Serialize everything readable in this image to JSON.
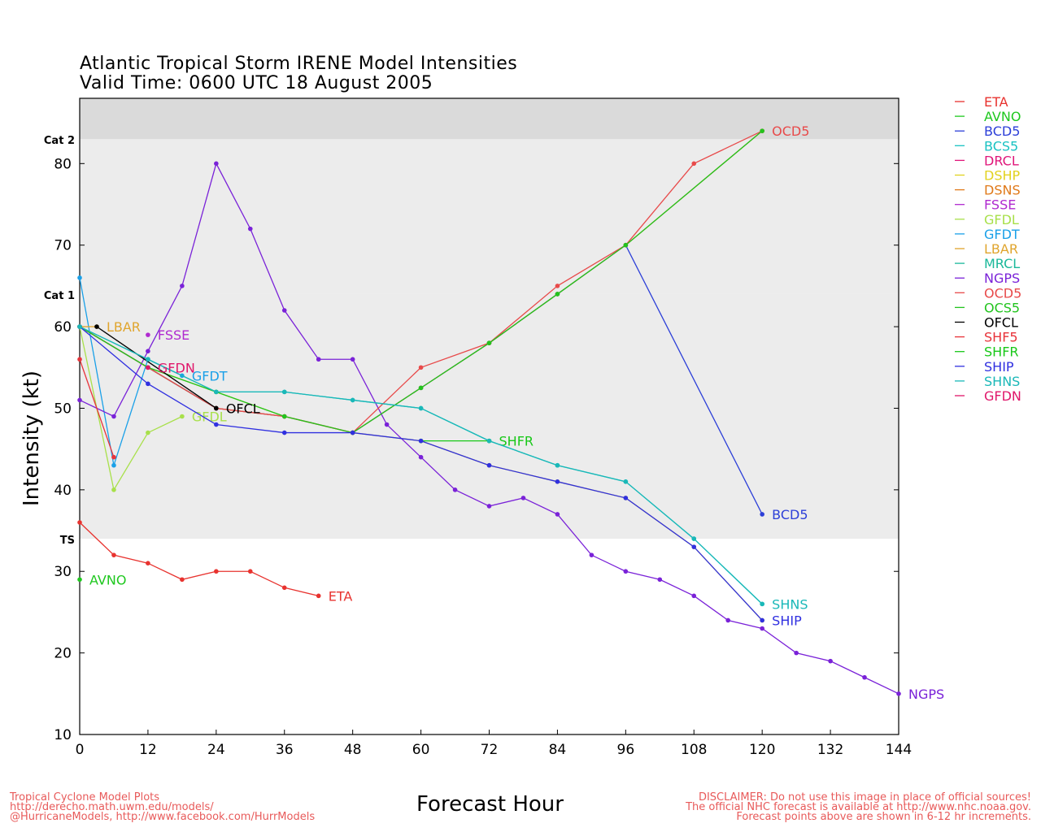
{
  "header": {
    "title_line1": "Atlantic Tropical Storm IRENE Model Intensities",
    "title_line2": "Valid Time: 0600 UTC 18 August 2005"
  },
  "footer": {
    "left": [
      "Tropical Cyclone Model Plots",
      "http://derecho.math.uwm.edu/models/",
      "@HurricaneModels, http://www.facebook.com/HurrModels"
    ],
    "right": [
      "DISCLAIMER: Do not use this image in place of official sources!",
      "The official NHC forecast is available at http://www.nhc.noaa.gov.",
      "Forecast points above are shown in 6-12 hr increments."
    ]
  },
  "chart_data": {
    "type": "line",
    "xlabel": "Forecast Hour",
    "ylabel": "Intensity (kt)",
    "xlim": [
      0,
      144
    ],
    "ylim": [
      10,
      88
    ],
    "xticks": [
      0,
      12,
      24,
      36,
      48,
      60,
      72,
      84,
      96,
      108,
      120,
      132,
      144
    ],
    "yticks": [
      10,
      20,
      30,
      40,
      50,
      60,
      70,
      80
    ],
    "category_bands": [
      {
        "label": "TS",
        "from": 34,
        "to": 64,
        "color": "#ececec"
      },
      {
        "label": "Cat 1",
        "from": 64,
        "to": 83,
        "color": "#ececec"
      },
      {
        "label": "Cat 2",
        "from": 83,
        "to": 88,
        "color": "#dadada"
      }
    ],
    "band_labels": [
      {
        "label": "TS",
        "y": 34
      },
      {
        "label": "Cat 1",
        "y": 64
      },
      {
        "label": "Cat 2",
        "y": 83
      }
    ],
    "legend_position": "right",
    "series": [
      {
        "name": "ETA",
        "color": "#e8332f",
        "x": [
          0,
          6,
          12,
          18,
          24,
          30,
          36,
          42
        ],
        "y": [
          36,
          32,
          31,
          29,
          30,
          30,
          28,
          27
        ],
        "end_label": "ETA"
      },
      {
        "name": "AVNO",
        "color": "#1ec81e",
        "x": [
          0
        ],
        "y": [
          29
        ],
        "end_label": "AVNO"
      },
      {
        "name": "BCD5",
        "color": "#2c3fd8",
        "x": [
          0,
          12,
          24,
          36,
          48,
          60,
          72,
          84,
          96,
          120
        ],
        "y": [
          60,
          55,
          50,
          49,
          47,
          52.5,
          58,
          64,
          70,
          37
        ],
        "end_label": "BCD5"
      },
      {
        "name": "BCS5",
        "color": "#19c2c2",
        "x": [
          0,
          12,
          24,
          36,
          48,
          60,
          72,
          84,
          96,
          108,
          120
        ],
        "y": [
          60,
          56,
          52,
          52,
          51,
          50,
          46,
          43,
          41,
          34,
          26
        ],
        "end_label": ""
      },
      {
        "name": "DRCL",
        "color": "#e0167a",
        "x": [
          0,
          12,
          24
        ],
        "y": [
          60,
          55,
          50
        ],
        "end_label": ""
      },
      {
        "name": "DSHP",
        "color": "#e2d21e",
        "x": [
          0,
          12,
          24,
          36,
          48,
          60,
          72,
          84,
          96,
          108,
          120
        ],
        "y": [
          60,
          55,
          52,
          49,
          47,
          46,
          43,
          41,
          39,
          33,
          24
        ],
        "end_label": ""
      },
      {
        "name": "DSNS",
        "color": "#e07a1a",
        "x": [
          0,
          12,
          24,
          36,
          48,
          60,
          72,
          84,
          96,
          120
        ],
        "y": [
          60,
          55,
          50,
          49,
          47,
          52.5,
          58,
          64,
          70,
          84
        ],
        "end_label": ""
      },
      {
        "name": "FSSE",
        "color": "#b02ad0",
        "x": [
          12
        ],
        "y": [
          59
        ],
        "end_label": "FSSE"
      },
      {
        "name": "GFDL",
        "color": "#a8e04a",
        "x": [
          0,
          6,
          12,
          18
        ],
        "y": [
          60,
          40,
          47,
          49
        ],
        "end_label": "GFDL"
      },
      {
        "name": "GFDT",
        "color": "#1aa0e8",
        "x": [
          0,
          6,
          12,
          18
        ],
        "y": [
          66,
          43,
          56,
          54
        ],
        "end_label": "GFDT"
      },
      {
        "name": "LBAR",
        "color": "#e0a52e",
        "x": [
          0,
          3
        ],
        "y": [
          60,
          60
        ],
        "end_label": "LBAR"
      },
      {
        "name": "MRCL",
        "color": "#1ab89a",
        "x": [
          0,
          12,
          24
        ],
        "y": [
          60,
          55,
          50
        ],
        "end_label": ""
      },
      {
        "name": "NGPS",
        "color": "#7a22d8",
        "x": [
          0,
          6,
          12,
          18,
          24,
          30,
          36,
          42,
          48,
          54,
          60,
          66,
          72,
          78,
          84,
          90,
          96,
          102,
          108,
          114,
          120,
          126,
          132,
          138,
          144
        ],
        "y": [
          51,
          49,
          57,
          65,
          80,
          72,
          62,
          56,
          56,
          48,
          44,
          40,
          38,
          39,
          37,
          32,
          30,
          29,
          27,
          24,
          23,
          20,
          19,
          17,
          15
        ],
        "end_label": "NGPS"
      },
      {
        "name": "OCD5",
        "color": "#e84a4a",
        "x": [
          0,
          12,
          24,
          36,
          48,
          60,
          72,
          84,
          96,
          108,
          120
        ],
        "y": [
          60,
          55,
          50,
          49,
          47,
          55,
          58,
          65,
          70,
          80,
          84
        ],
        "end_label": "OCD5"
      },
      {
        "name": "OCS5",
        "color": "#22c41e",
        "x": [
          0,
          12,
          24,
          36,
          48,
          60,
          72,
          84,
          96,
          120
        ],
        "y": [
          60,
          55,
          52,
          49,
          47,
          52.5,
          58,
          64,
          70,
          84
        ],
        "end_label": ""
      },
      {
        "name": "OFCL",
        "color": "#000000",
        "x": [
          3,
          24
        ],
        "y": [
          60,
          50
        ],
        "end_label": "OFCL"
      },
      {
        "name": "SHF5",
        "color": "#e8333a",
        "x": [
          0,
          6
        ],
        "y": [
          56,
          44
        ],
        "end_label": ""
      },
      {
        "name": "SHFR",
        "color": "#18c818",
        "x": [
          60,
          72
        ],
        "y": [
          46,
          46
        ],
        "end_label": "SHFR"
      },
      {
        "name": "SHIP",
        "color": "#3030e0",
        "x": [
          0,
          12,
          24,
          36,
          48,
          60,
          72,
          84,
          96,
          108,
          120
        ],
        "y": [
          60,
          53,
          48,
          47,
          47,
          46,
          43,
          41,
          39,
          33,
          24
        ],
        "end_label": "SHIP"
      },
      {
        "name": "SHNS",
        "color": "#1ab8b8",
        "x": [
          0,
          12,
          24,
          36,
          48,
          60,
          72,
          84,
          96,
          108,
          120
        ],
        "y": [
          60,
          56,
          52,
          52,
          51,
          50,
          46,
          43,
          41,
          34,
          26
        ],
        "end_label": "SHNS"
      },
      {
        "name": "GFDN",
        "color": "#e0166a",
        "x": [
          12
        ],
        "y": [
          55
        ],
        "end_label": "GFDN"
      }
    ]
  }
}
